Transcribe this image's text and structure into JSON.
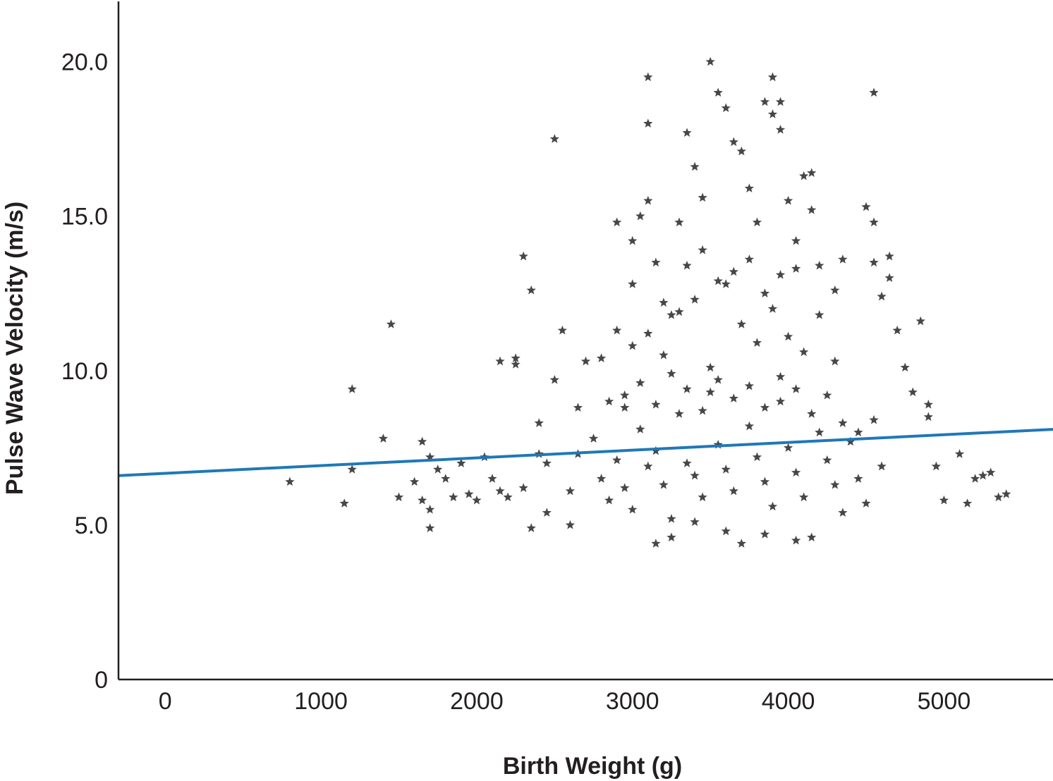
{
  "chart_data": {
    "type": "scatter",
    "title": "",
    "xlabel": "Birth Weight (g)",
    "ylabel": "Pulse Wave Velocity (m/s)",
    "xlim": [
      -300,
      5700
    ],
    "ylim": [
      0,
      22
    ],
    "x_ticks": [
      0,
      1000,
      2000,
      3000,
      4000,
      5000
    ],
    "x_tick_labels": [
      "0",
      "1000",
      "2000",
      "3000",
      "4000",
      "5000"
    ],
    "y_ticks": [
      0,
      5,
      10,
      15,
      20
    ],
    "y_tick_labels": [
      "0",
      "5.0",
      "10.0",
      "15.0",
      "20.0"
    ],
    "grid": false,
    "legend": "none",
    "marker": "star",
    "point_color": "#474747",
    "trend_color": "#1f78b8",
    "trend_line": {
      "x": [
        -300,
        5700
      ],
      "y": [
        6.6,
        8.1
      ]
    },
    "points": [
      [
        800,
        6.4
      ],
      [
        1150,
        5.7
      ],
      [
        1200,
        9.4
      ],
      [
        1200,
        6.8
      ],
      [
        1400,
        7.8
      ],
      [
        1450,
        11.5
      ],
      [
        1500,
        5.9
      ],
      [
        1600,
        6.4
      ],
      [
        1650,
        7.7
      ],
      [
        1650,
        5.8
      ],
      [
        1700,
        5.5
      ],
      [
        1700,
        4.9
      ],
      [
        1700,
        7.2
      ],
      [
        1750,
        6.8
      ],
      [
        1800,
        6.5
      ],
      [
        1850,
        5.9
      ],
      [
        1900,
        7.0
      ],
      [
        1950,
        6.0
      ],
      [
        2000,
        5.8
      ],
      [
        2050,
        7.2
      ],
      [
        2100,
        6.5
      ],
      [
        2150,
        10.3
      ],
      [
        2150,
        6.1
      ],
      [
        2200,
        5.9
      ],
      [
        2250,
        10.4
      ],
      [
        2250,
        10.2
      ],
      [
        2300,
        13.7
      ],
      [
        2300,
        6.2
      ],
      [
        2350,
        12.6
      ],
      [
        2350,
        4.9
      ],
      [
        2400,
        7.3
      ],
      [
        2400,
        8.3
      ],
      [
        2450,
        7.0
      ],
      [
        2450,
        5.4
      ],
      [
        2500,
        17.5
      ],
      [
        2500,
        9.7
      ],
      [
        2550,
        11.3
      ],
      [
        2600,
        6.1
      ],
      [
        2600,
        5.0
      ],
      [
        2650,
        8.8
      ],
      [
        2650,
        7.3
      ],
      [
        2700,
        10.3
      ],
      [
        2800,
        10.4
      ],
      [
        2850,
        9.0
      ],
      [
        2900,
        14.8
      ],
      [
        2900,
        11.3
      ],
      [
        2950,
        8.8
      ],
      [
        3000,
        14.2
      ],
      [
        3000,
        12.8
      ],
      [
        3050,
        15.0
      ],
      [
        3100,
        19.5
      ],
      [
        3100,
        15.5
      ],
      [
        3100,
        18.0
      ],
      [
        3150,
        13.5
      ],
      [
        3200,
        12.2
      ],
      [
        3250,
        11.8
      ],
      [
        3300,
        14.8
      ],
      [
        3350,
        17.7
      ],
      [
        3400,
        16.6
      ],
      [
        3450,
        15.6
      ],
      [
        3500,
        20.0
      ],
      [
        3550,
        19.0
      ],
      [
        3600,
        18.5
      ],
      [
        3650,
        17.4
      ],
      [
        3700,
        17.1
      ],
      [
        3750,
        15.9
      ],
      [
        3800,
        14.8
      ],
      [
        3850,
        18.7
      ],
      [
        3900,
        19.5
      ],
      [
        3900,
        18.3
      ],
      [
        3950,
        17.8
      ],
      [
        3950,
        18.7
      ],
      [
        4000,
        15.5
      ],
      [
        4050,
        14.2
      ],
      [
        4100,
        16.3
      ],
      [
        4150,
        16.4
      ],
      [
        4150,
        15.2
      ],
      [
        4200,
        13.4
      ],
      [
        4300,
        12.6
      ],
      [
        4350,
        13.6
      ],
      [
        4500,
        15.3
      ],
      [
        4550,
        19.0
      ],
      [
        4550,
        14.8
      ],
      [
        4550,
        13.5
      ],
      [
        4600,
        12.4
      ],
      [
        4650,
        13.0
      ],
      [
        4650,
        13.7
      ],
      [
        4700,
        11.3
      ],
      [
        4750,
        10.1
      ],
      [
        4800,
        9.3
      ],
      [
        4850,
        11.6
      ],
      [
        4900,
        8.9
      ],
      [
        4900,
        8.5
      ],
      [
        4950,
        6.9
      ],
      [
        5000,
        5.8
      ],
      [
        5100,
        7.3
      ],
      [
        5150,
        5.7
      ],
      [
        5200,
        6.5
      ],
      [
        5250,
        6.6
      ],
      [
        5300,
        6.7
      ],
      [
        5350,
        5.9
      ],
      [
        5400,
        6.0
      ],
      [
        2750,
        7.8
      ],
      [
        2800,
        6.5
      ],
      [
        2850,
        5.8
      ],
      [
        2900,
        7.1
      ],
      [
        2950,
        6.2
      ],
      [
        3000,
        5.5
      ],
      [
        3050,
        8.1
      ],
      [
        3100,
        6.9
      ],
      [
        3150,
        7.4
      ],
      [
        3200,
        6.3
      ],
      [
        3250,
        5.2
      ],
      [
        3300,
        8.6
      ],
      [
        3350,
        7.0
      ],
      [
        3400,
        6.6
      ],
      [
        3450,
        5.9
      ],
      [
        3500,
        9.3
      ],
      [
        3550,
        7.6
      ],
      [
        3600,
        6.8
      ],
      [
        3650,
        6.1
      ],
      [
        3700,
        4.4
      ],
      [
        3750,
        8.2
      ],
      [
        3800,
        7.2
      ],
      [
        3850,
        6.4
      ],
      [
        3900,
        5.6
      ],
      [
        3950,
        9.8
      ],
      [
        4000,
        7.5
      ],
      [
        4050,
        6.7
      ],
      [
        4100,
        5.9
      ],
      [
        4150,
        4.6
      ],
      [
        4200,
        8.0
      ],
      [
        4250,
        7.1
      ],
      [
        4300,
        6.3
      ],
      [
        4350,
        5.4
      ],
      [
        4400,
        7.7
      ],
      [
        4450,
        6.5
      ],
      [
        4500,
        5.7
      ],
      [
        4550,
        8.4
      ],
      [
        4600,
        6.9
      ],
      [
        3150,
        4.4
      ],
      [
        3250,
        4.6
      ],
      [
        3400,
        5.1
      ],
      [
        3600,
        4.8
      ],
      [
        3850,
        4.7
      ],
      [
        4050,
        4.5
      ],
      [
        3000,
        10.8
      ],
      [
        3100,
        11.2
      ],
      [
        3200,
        10.5
      ],
      [
        3300,
        11.9
      ],
      [
        3400,
        12.3
      ],
      [
        3500,
        10.1
      ],
      [
        3600,
        12.8
      ],
      [
        3700,
        11.5
      ],
      [
        3800,
        10.9
      ],
      [
        3900,
        12.0
      ],
      [
        4000,
        11.1
      ],
      [
        4100,
        10.6
      ],
      [
        4200,
        11.8
      ],
      [
        4300,
        10.3
      ],
      [
        3350,
        13.4
      ],
      [
        3450,
        13.9
      ],
      [
        3550,
        12.9
      ],
      [
        3650,
        13.2
      ],
      [
        3750,
        13.6
      ],
      [
        3850,
        12.5
      ],
      [
        3950,
        13.1
      ],
      [
        4050,
        13.3
      ],
      [
        2950,
        9.2
      ],
      [
        3050,
        9.6
      ],
      [
        3150,
        8.9
      ],
      [
        3250,
        9.9
      ],
      [
        3350,
        9.4
      ],
      [
        3450,
        8.7
      ],
      [
        3550,
        9.7
      ],
      [
        3650,
        9.1
      ],
      [
        3750,
        9.5
      ],
      [
        3850,
        8.8
      ],
      [
        3950,
        9.0
      ],
      [
        4050,
        9.4
      ],
      [
        4150,
        8.6
      ],
      [
        4250,
        9.2
      ],
      [
        4350,
        8.3
      ],
      [
        4450,
        8.0
      ]
    ]
  }
}
